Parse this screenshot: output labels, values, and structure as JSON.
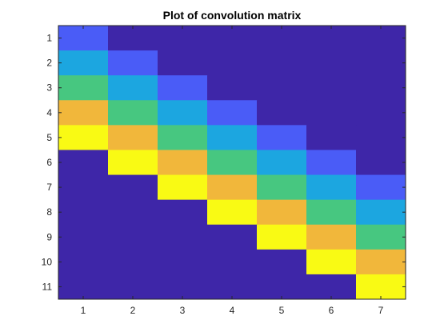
{
  "chart_data": {
    "type": "heatmap",
    "title": "Plot of convolution matrix",
    "xlabel": "",
    "ylabel": "",
    "x_ticks": [
      "1",
      "2",
      "3",
      "4",
      "5",
      "6",
      "7"
    ],
    "y_ticks": [
      "1",
      "2",
      "3",
      "4",
      "5",
      "6",
      "7",
      "8",
      "9",
      "10",
      "11"
    ],
    "xlim": [
      0.5,
      7.5
    ],
    "ylim": [
      0.5,
      11.5
    ],
    "y_direction": "top-to-bottom",
    "grid": false,
    "colormap": "parula",
    "values": [
      [
        1,
        0,
        0,
        0,
        0,
        0,
        0
      ],
      [
        2,
        1,
        0,
        0,
        0,
        0,
        0
      ],
      [
        3,
        2,
        1,
        0,
        0,
        0,
        0
      ],
      [
        4,
        3,
        2,
        1,
        0,
        0,
        0
      ],
      [
        5,
        4,
        3,
        2,
        1,
        0,
        0
      ],
      [
        0,
        5,
        4,
        3,
        2,
        1,
        0
      ],
      [
        0,
        0,
        5,
        4,
        3,
        2,
        1
      ],
      [
        0,
        0,
        0,
        5,
        4,
        3,
        2
      ],
      [
        0,
        0,
        0,
        0,
        5,
        4,
        3
      ],
      [
        0,
        0,
        0,
        0,
        0,
        5,
        4
      ],
      [
        0,
        0,
        0,
        0,
        0,
        0,
        5
      ]
    ],
    "color_scale": {
      "0": "#3e26a8",
      "1": "#4a5cf7",
      "2": "#1ca6e0",
      "3": "#47c780",
      "4": "#f1b73b",
      "5": "#f9fa14"
    },
    "axes_color": "#262626"
  }
}
